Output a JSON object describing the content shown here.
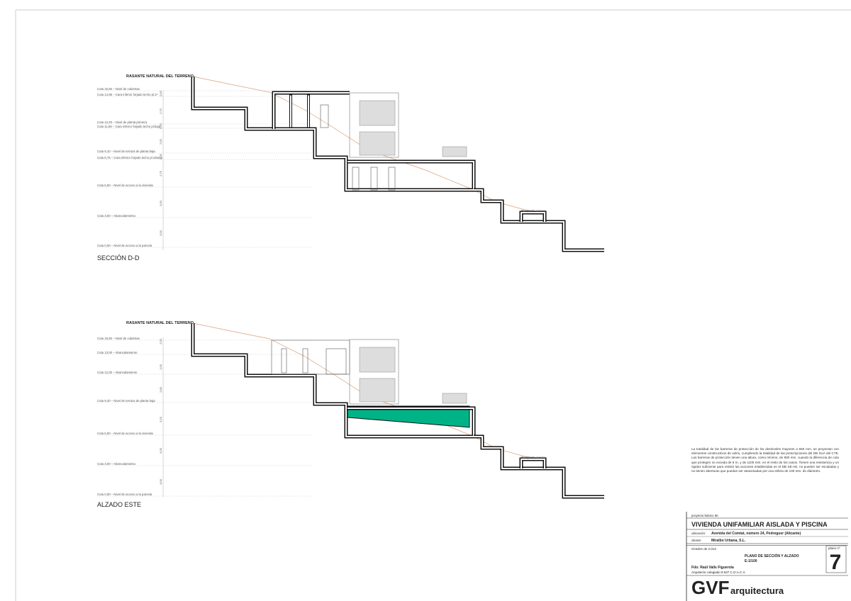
{
  "section_dd": {
    "terrain_label": "RASANTE NATURAL DEL TERRENO",
    "levels": [
      "Cota 15,50 – Nivel de cubiertas",
      "Cota 14,95 – Cara inferior forjado techo pl.1ª",
      "Cota 12,20 – Nivel de planta primera",
      "Cota 11,65 – Cara inferior forjado techo pl.baja",
      "Cota 9,10 – Nivel de terraza de planta baja",
      "Cota 8,75 – Cara inferior forjado techo pl.sótano",
      "Cota 6,00 – Nivel de acceso a la vivienda",
      "Cota 3,00 – Abancalamiento",
      "Cota 0,00 – Nivel de acceso a la parcela"
    ],
    "dimensions": [
      "0,55",
      "2,75",
      "0,55",
      "2,55",
      "0,35",
      "2,75",
      "3,00",
      "3,00"
    ],
    "ramp_label": "Rampa de acceso",
    "title": "SECCIÓN D-D"
  },
  "east_elevation": {
    "terrain_label": "RASANTE NATURAL DEL TERRENO",
    "levels": [
      "Cota 15,50 – Nivel de cubiertas",
      "Cota 13,00 – Abancalamiento",
      "Cota 12,00 – Abancalamiento",
      "Cota 9,20 – Nivel de terraza de planta baja",
      "Cota 6,00 – Nivel de acceso a la vivienda",
      "Cota 3,00 – Abancalamiento",
      "Cota 0,00 – Nivel de acceso a la parcela"
    ],
    "dimensions": [
      "2,50",
      "1,00",
      "2,80",
      "3,20",
      "3,00",
      "3,00"
    ],
    "ramp_label": "Rampa de acceso",
    "title": "ALZADO ESTE"
  },
  "note": "La totalidad de las barreras de protección de los desniveles mayores a 550 mm. se proyectan con elementos constructivos de vidrio, cumpliendo la totalidad de las prescripciones del DB SUA del CTE. Las barreras de protección tienen una altura, como mínimo, de 900 mm. cuando la diferencia de cota que protegen no exceda de 6 m. y de 1100 mm. en el resto de los casos. Tienen una resistencia y un rigidez suficiente para resistir las acciones establecidas en el DB SE-AE, no pueden ser escaladas y no tienen aberturas que puedan ser atravesadas por una esfera de 100 mm. de diámetro.",
  "title_block": {
    "project_type": "proyecto básico de",
    "project": "VIVIENDA UNIFAMILIAR AISLADA Y PISCINA",
    "location_label": "ubicación:",
    "location": "Avenida del Comtat, número 24, Pedreguer (Alicante)",
    "client_label": "cliente:",
    "client": "Miralbo Urbana, S.L.",
    "date": "Octubre de 2.013",
    "sheet_label": "plano nº",
    "sheet_number": "7",
    "sheet_title": "PLANO DE SECCIÓN Y ALZADO",
    "scale": "E:1/100",
    "signed": "Fdo: Raúl Valls Figuerola",
    "architect": "Arquitecto colegiado 8.637 C.O.A.C.V.",
    "brand": "GVF",
    "brand_suffix": "arquitectura"
  }
}
